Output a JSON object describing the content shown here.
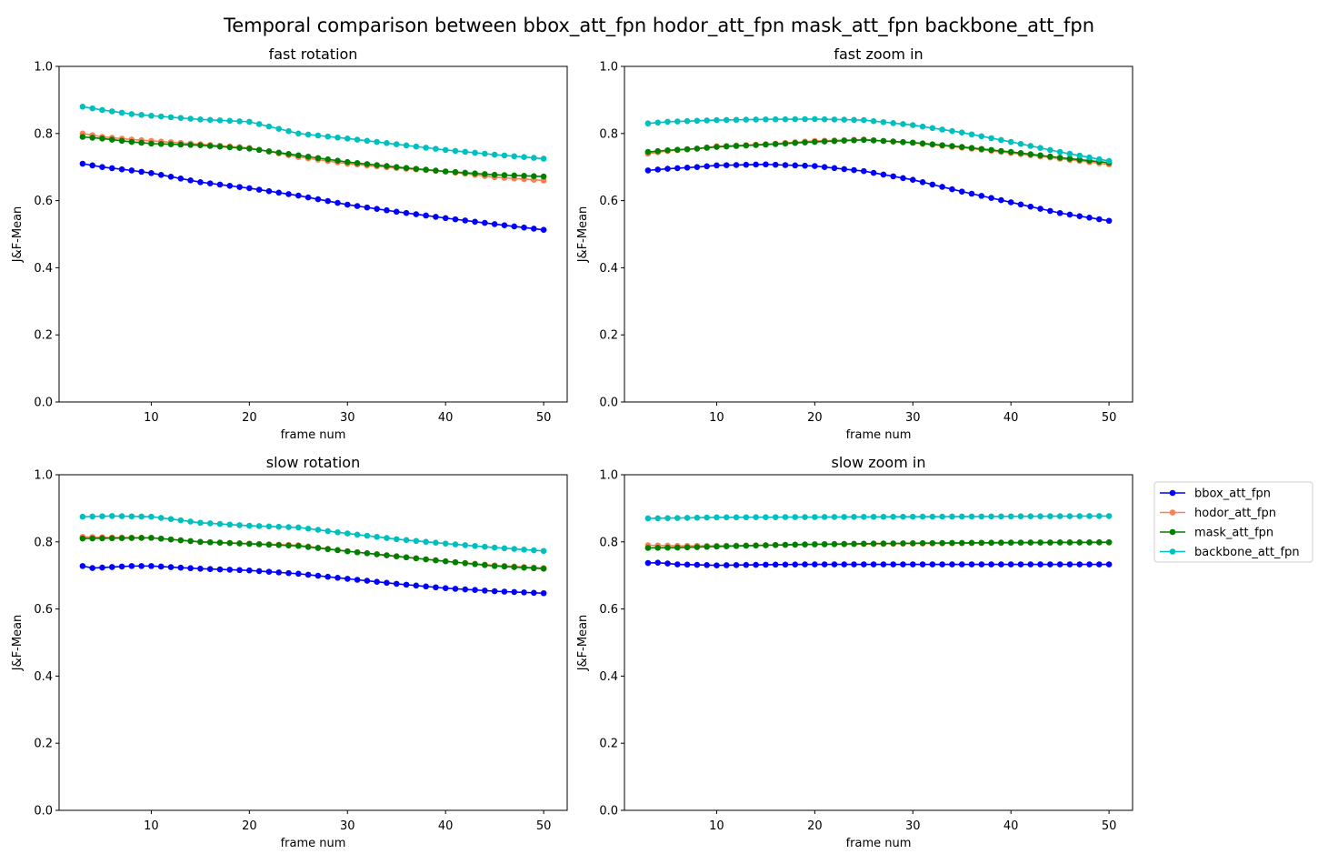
{
  "figure": {
    "title": "Temporal comparison between bbox_att_fpn hodor_att_fpn mask_att_fpn backbone_att_fpn"
  },
  "legend": {
    "placement": "outside-right",
    "entries": [
      {
        "name": "bbox_att_fpn",
        "color": "#0000ff"
      },
      {
        "name": "hodor_att_fpn",
        "color": "#ff7f50"
      },
      {
        "name": "mask_att_fpn",
        "color": "#008000"
      },
      {
        "name": "backbone_att_fpn",
        "color": "#00bfbf"
      }
    ]
  },
  "chart_data": [
    {
      "type": "line",
      "title": "fast rotation",
      "xlabel": "frame num",
      "ylabel": "J&F-Mean",
      "xlim": [
        0.6,
        52.4
      ],
      "ylim": [
        0.0,
        1.0
      ],
      "xticks": [
        10,
        20,
        30,
        40,
        50
      ],
      "yticks": [
        "0.0",
        "0.2",
        "0.4",
        "0.6",
        "0.8",
        "1.0"
      ],
      "x_range": [
        3,
        50
      ],
      "series": [
        {
          "name": "bbox_att_fpn",
          "keypoints": [
            [
              3,
              0.71
            ],
            [
              5,
              0.7
            ],
            [
              8,
              0.69
            ],
            [
              10,
              0.682
            ],
            [
              15,
              0.655
            ],
            [
              20,
              0.637
            ],
            [
              25,
              0.615
            ],
            [
              30,
              0.588
            ],
            [
              35,
              0.567
            ],
            [
              40,
              0.548
            ],
            [
              45,
              0.53
            ],
            [
              50,
              0.513
            ]
          ]
        },
        {
          "name": "hodor_att_fpn",
          "keypoints": [
            [
              3,
              0.8
            ],
            [
              5,
              0.79
            ],
            [
              8,
              0.782
            ],
            [
              10,
              0.778
            ],
            [
              15,
              0.768
            ],
            [
              20,
              0.757
            ],
            [
              25,
              0.73
            ],
            [
              30,
              0.71
            ],
            [
              35,
              0.697
            ],
            [
              40,
              0.687
            ],
            [
              45,
              0.67
            ],
            [
              50,
              0.66
            ]
          ]
        },
        {
          "name": "mask_att_fpn",
          "keypoints": [
            [
              3,
              0.79
            ],
            [
              5,
              0.785
            ],
            [
              8,
              0.775
            ],
            [
              10,
              0.77
            ],
            [
              15,
              0.765
            ],
            [
              20,
              0.755
            ],
            [
              25,
              0.735
            ],
            [
              30,
              0.715
            ],
            [
              35,
              0.7
            ],
            [
              40,
              0.687
            ],
            [
              45,
              0.677
            ],
            [
              50,
              0.672
            ]
          ]
        },
        {
          "name": "backbone_att_fpn",
          "keypoints": [
            [
              3,
              0.88
            ],
            [
              5,
              0.87
            ],
            [
              8,
              0.858
            ],
            [
              10,
              0.853
            ],
            [
              15,
              0.842
            ],
            [
              20,
              0.835
            ],
            [
              25,
              0.8
            ],
            [
              30,
              0.785
            ],
            [
              35,
              0.768
            ],
            [
              40,
              0.751
            ],
            [
              45,
              0.737
            ],
            [
              50,
              0.725
            ]
          ]
        }
      ]
    },
    {
      "type": "line",
      "title": "fast zoom in",
      "xlabel": "frame num",
      "ylabel": "J&F-Mean",
      "xlim": [
        0.6,
        52.4
      ],
      "ylim": [
        0.0,
        1.0
      ],
      "xticks": [
        10,
        20,
        30,
        40,
        50
      ],
      "yticks": [
        "0.0",
        "0.2",
        "0.4",
        "0.6",
        "0.8",
        "1.0"
      ],
      "x_range": [
        3,
        50
      ],
      "series": [
        {
          "name": "bbox_att_fpn",
          "keypoints": [
            [
              3,
              0.69
            ],
            [
              5,
              0.695
            ],
            [
              8,
              0.7
            ],
            [
              10,
              0.705
            ],
            [
              15,
              0.708
            ],
            [
              20,
              0.703
            ],
            [
              25,
              0.688
            ],
            [
              30,
              0.662
            ],
            [
              35,
              0.627
            ],
            [
              40,
              0.595
            ],
            [
              45,
              0.563
            ],
            [
              50,
              0.54
            ]
          ]
        },
        {
          "name": "hodor_att_fpn",
          "keypoints": [
            [
              3,
              0.74
            ],
            [
              5,
              0.748
            ],
            [
              8,
              0.755
            ],
            [
              10,
              0.762
            ],
            [
              15,
              0.768
            ],
            [
              20,
              0.778
            ],
            [
              25,
              0.782
            ],
            [
              30,
              0.772
            ],
            [
              35,
              0.758
            ],
            [
              40,
              0.742
            ],
            [
              45,
              0.725
            ],
            [
              50,
              0.708
            ]
          ]
        },
        {
          "name": "mask_att_fpn",
          "keypoints": [
            [
              3,
              0.745
            ],
            [
              5,
              0.75
            ],
            [
              8,
              0.755
            ],
            [
              10,
              0.76
            ],
            [
              15,
              0.767
            ],
            [
              20,
              0.775
            ],
            [
              25,
              0.781
            ],
            [
              30,
              0.773
            ],
            [
              35,
              0.76
            ],
            [
              40,
              0.745
            ],
            [
              45,
              0.728
            ],
            [
              50,
              0.713
            ]
          ]
        },
        {
          "name": "backbone_att_fpn",
          "keypoints": [
            [
              3,
              0.83
            ],
            [
              5,
              0.835
            ],
            [
              8,
              0.838
            ],
            [
              10,
              0.84
            ],
            [
              15,
              0.842
            ],
            [
              20,
              0.843
            ],
            [
              25,
              0.84
            ],
            [
              30,
              0.825
            ],
            [
              35,
              0.803
            ],
            [
              40,
              0.775
            ],
            [
              45,
              0.745
            ],
            [
              50,
              0.718
            ]
          ]
        }
      ]
    },
    {
      "type": "line",
      "title": "slow rotation",
      "xlabel": "frame num",
      "ylabel": "J&F-Mean",
      "xlim": [
        0.6,
        52.4
      ],
      "ylim": [
        0.0,
        1.0
      ],
      "xticks": [
        10,
        20,
        30,
        40,
        50
      ],
      "yticks": [
        "0.0",
        "0.2",
        "0.4",
        "0.6",
        "0.8",
        "1.0"
      ],
      "x_range": [
        3,
        50
      ],
      "series": [
        {
          "name": "bbox_att_fpn",
          "keypoints": [
            [
              3,
              0.728
            ],
            [
              4,
              0.722
            ],
            [
              6,
              0.725
            ],
            [
              8,
              0.728
            ],
            [
              10,
              0.728
            ],
            [
              15,
              0.72
            ],
            [
              20,
              0.715
            ],
            [
              25,
              0.705
            ],
            [
              30,
              0.69
            ],
            [
              35,
              0.675
            ],
            [
              40,
              0.662
            ],
            [
              45,
              0.653
            ],
            [
              50,
              0.647
            ]
          ]
        },
        {
          "name": "hodor_att_fpn",
          "keypoints": [
            [
              3,
              0.815
            ],
            [
              6,
              0.813
            ],
            [
              10,
              0.812
            ],
            [
              15,
              0.8
            ],
            [
              20,
              0.795
            ],
            [
              25,
              0.79
            ],
            [
              30,
              0.772
            ],
            [
              35,
              0.757
            ],
            [
              40,
              0.742
            ],
            [
              45,
              0.73
            ],
            [
              50,
              0.722
            ]
          ]
        },
        {
          "name": "mask_att_fpn",
          "keypoints": [
            [
              3,
              0.81
            ],
            [
              6,
              0.811
            ],
            [
              10,
              0.812
            ],
            [
              15,
              0.8
            ],
            [
              20,
              0.794
            ],
            [
              25,
              0.788
            ],
            [
              30,
              0.772
            ],
            [
              35,
              0.757
            ],
            [
              40,
              0.742
            ],
            [
              45,
              0.728
            ],
            [
              50,
              0.72
            ]
          ]
        },
        {
          "name": "backbone_att_fpn",
          "keypoints": [
            [
              3,
              0.875
            ],
            [
              6,
              0.877
            ],
            [
              10,
              0.875
            ],
            [
              12,
              0.868
            ],
            [
              15,
              0.857
            ],
            [
              20,
              0.848
            ],
            [
              25,
              0.843
            ],
            [
              30,
              0.825
            ],
            [
              35,
              0.808
            ],
            [
              40,
              0.795
            ],
            [
              45,
              0.783
            ],
            [
              50,
              0.773
            ]
          ]
        }
      ]
    },
    {
      "type": "line",
      "title": "slow zoom in",
      "xlabel": "frame num",
      "ylabel": "J&F-Mean",
      "xlim": [
        0.6,
        52.4
      ],
      "ylim": [
        0.0,
        1.0
      ],
      "xticks": [
        10,
        20,
        30,
        40,
        50
      ],
      "yticks": [
        "0.0",
        "0.2",
        "0.4",
        "0.6",
        "0.8",
        "1.0"
      ],
      "x_range": [
        3,
        50
      ],
      "series": [
        {
          "name": "bbox_att_fpn",
          "keypoints": [
            [
              3,
              0.737
            ],
            [
              4,
              0.738
            ],
            [
              6,
              0.733
            ],
            [
              10,
              0.73
            ],
            [
              15,
              0.732
            ],
            [
              20,
              0.733
            ],
            [
              30,
              0.733
            ],
            [
              40,
              0.733
            ],
            [
              50,
              0.733
            ]
          ]
        },
        {
          "name": "hodor_att_fpn",
          "keypoints": [
            [
              3,
              0.79
            ],
            [
              6,
              0.788
            ],
            [
              10,
              0.788
            ],
            [
              15,
              0.79
            ],
            [
              20,
              0.792
            ],
            [
              30,
              0.795
            ],
            [
              40,
              0.797
            ],
            [
              50,
              0.798
            ]
          ]
        },
        {
          "name": "mask_att_fpn",
          "keypoints": [
            [
              3,
              0.782
            ],
            [
              6,
              0.783
            ],
            [
              10,
              0.786
            ],
            [
              15,
              0.79
            ],
            [
              20,
              0.793
            ],
            [
              30,
              0.796
            ],
            [
              40,
              0.798
            ],
            [
              50,
              0.799
            ]
          ]
        },
        {
          "name": "backbone_att_fpn",
          "keypoints": [
            [
              3,
              0.87
            ],
            [
              6,
              0.871
            ],
            [
              10,
              0.873
            ],
            [
              20,
              0.874
            ],
            [
              30,
              0.875
            ],
            [
              40,
              0.876
            ],
            [
              50,
              0.877
            ]
          ]
        }
      ]
    }
  ]
}
